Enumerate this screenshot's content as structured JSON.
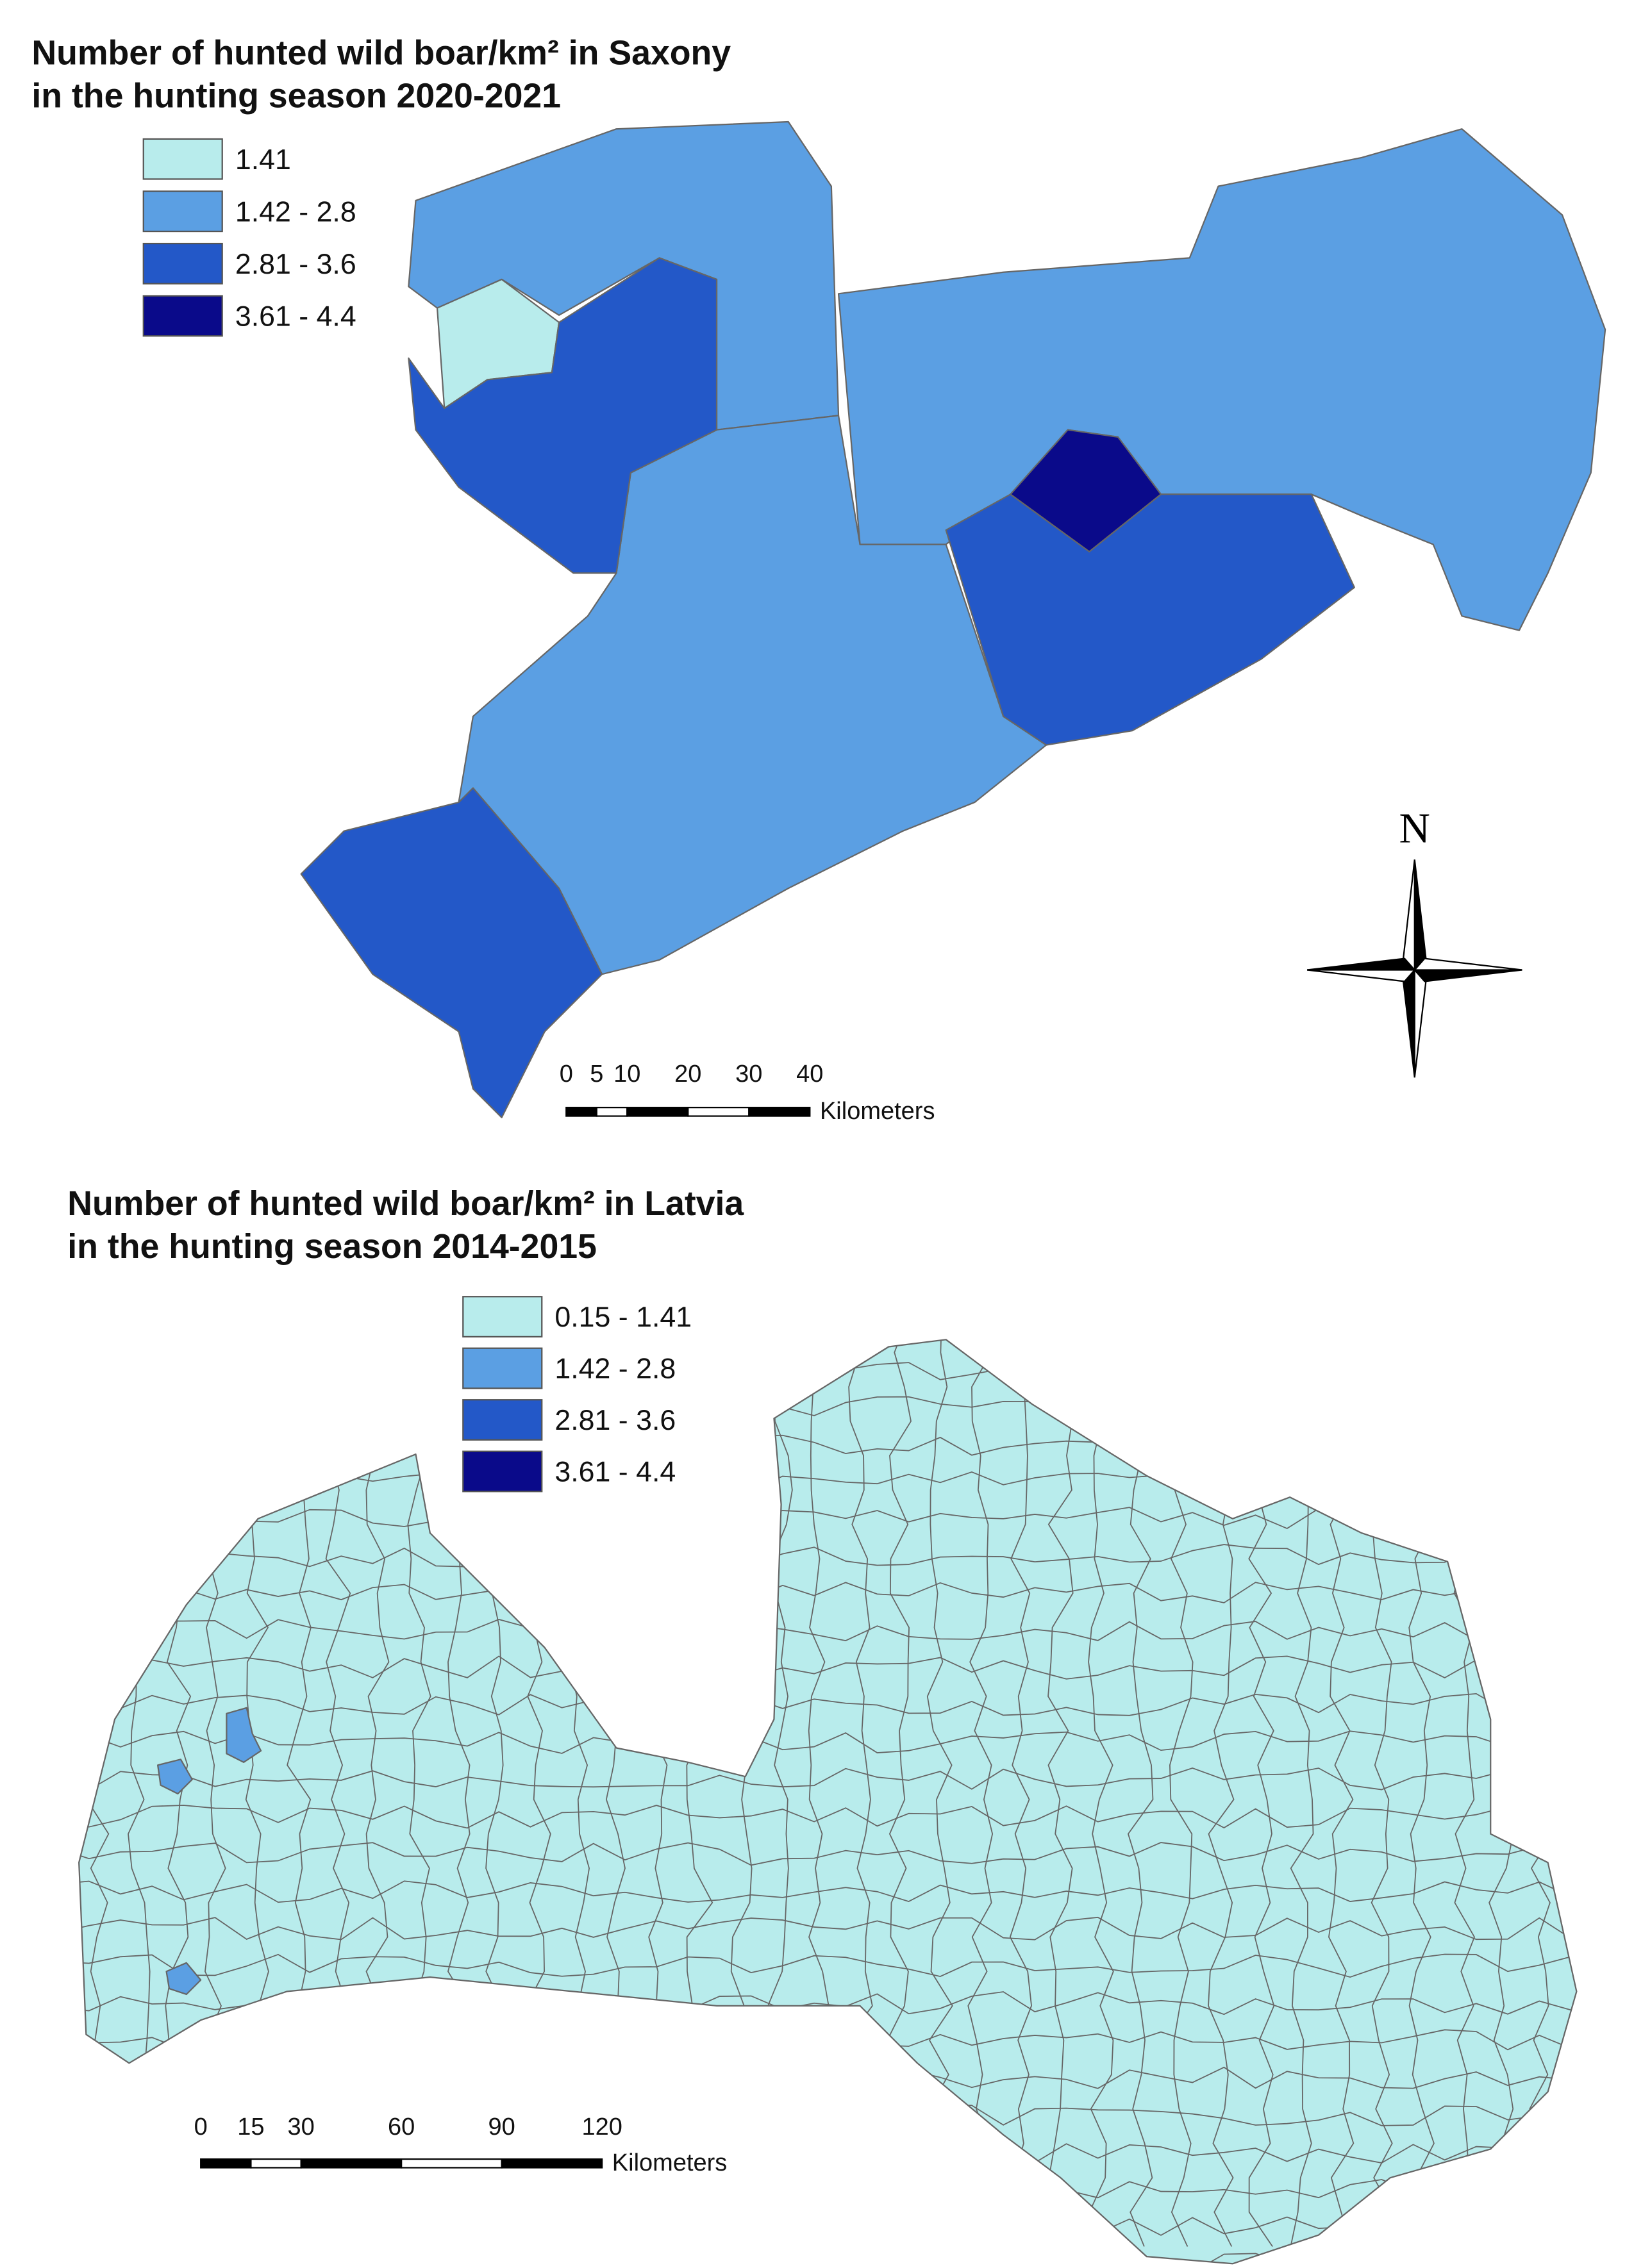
{
  "maps": [
    {
      "title": [
        "Number of hunted wild boar/km² in Saxony",
        "in the hunting season 2020-2021"
      ],
      "legend": [
        {
          "label": "1.41",
          "color": "#b8ecec"
        },
        {
          "label": "1.42 - 2.8",
          "color": "#5b9fe3"
        },
        {
          "label": "2.81 - 3.6",
          "color": "#2358c8"
        },
        {
          "label": "3.61 - 4.4",
          "color": "#0a0a8a"
        }
      ],
      "scale": {
        "ticks": [
          0,
          5,
          10,
          20,
          30,
          40
        ],
        "unit": "Kilometers"
      }
    },
    {
      "title": [
        "Number of hunted wild boar/km² in Latvia",
        "in the hunting season 2014-2015"
      ],
      "legend": [
        {
          "label": "0.15 - 1.41",
          "color": "#b8ecec"
        },
        {
          "label": "1.42 - 2.8",
          "color": "#5b9fe3"
        },
        {
          "label": "2.81 - 3.6",
          "color": "#2358c8"
        },
        {
          "label": "3.61 - 4.4",
          "color": "#0a0a8a"
        }
      ],
      "scale": {
        "ticks": [
          0,
          15,
          30,
          60,
          90,
          120
        ],
        "unit": "Kilometers"
      }
    }
  ],
  "north": "N"
}
